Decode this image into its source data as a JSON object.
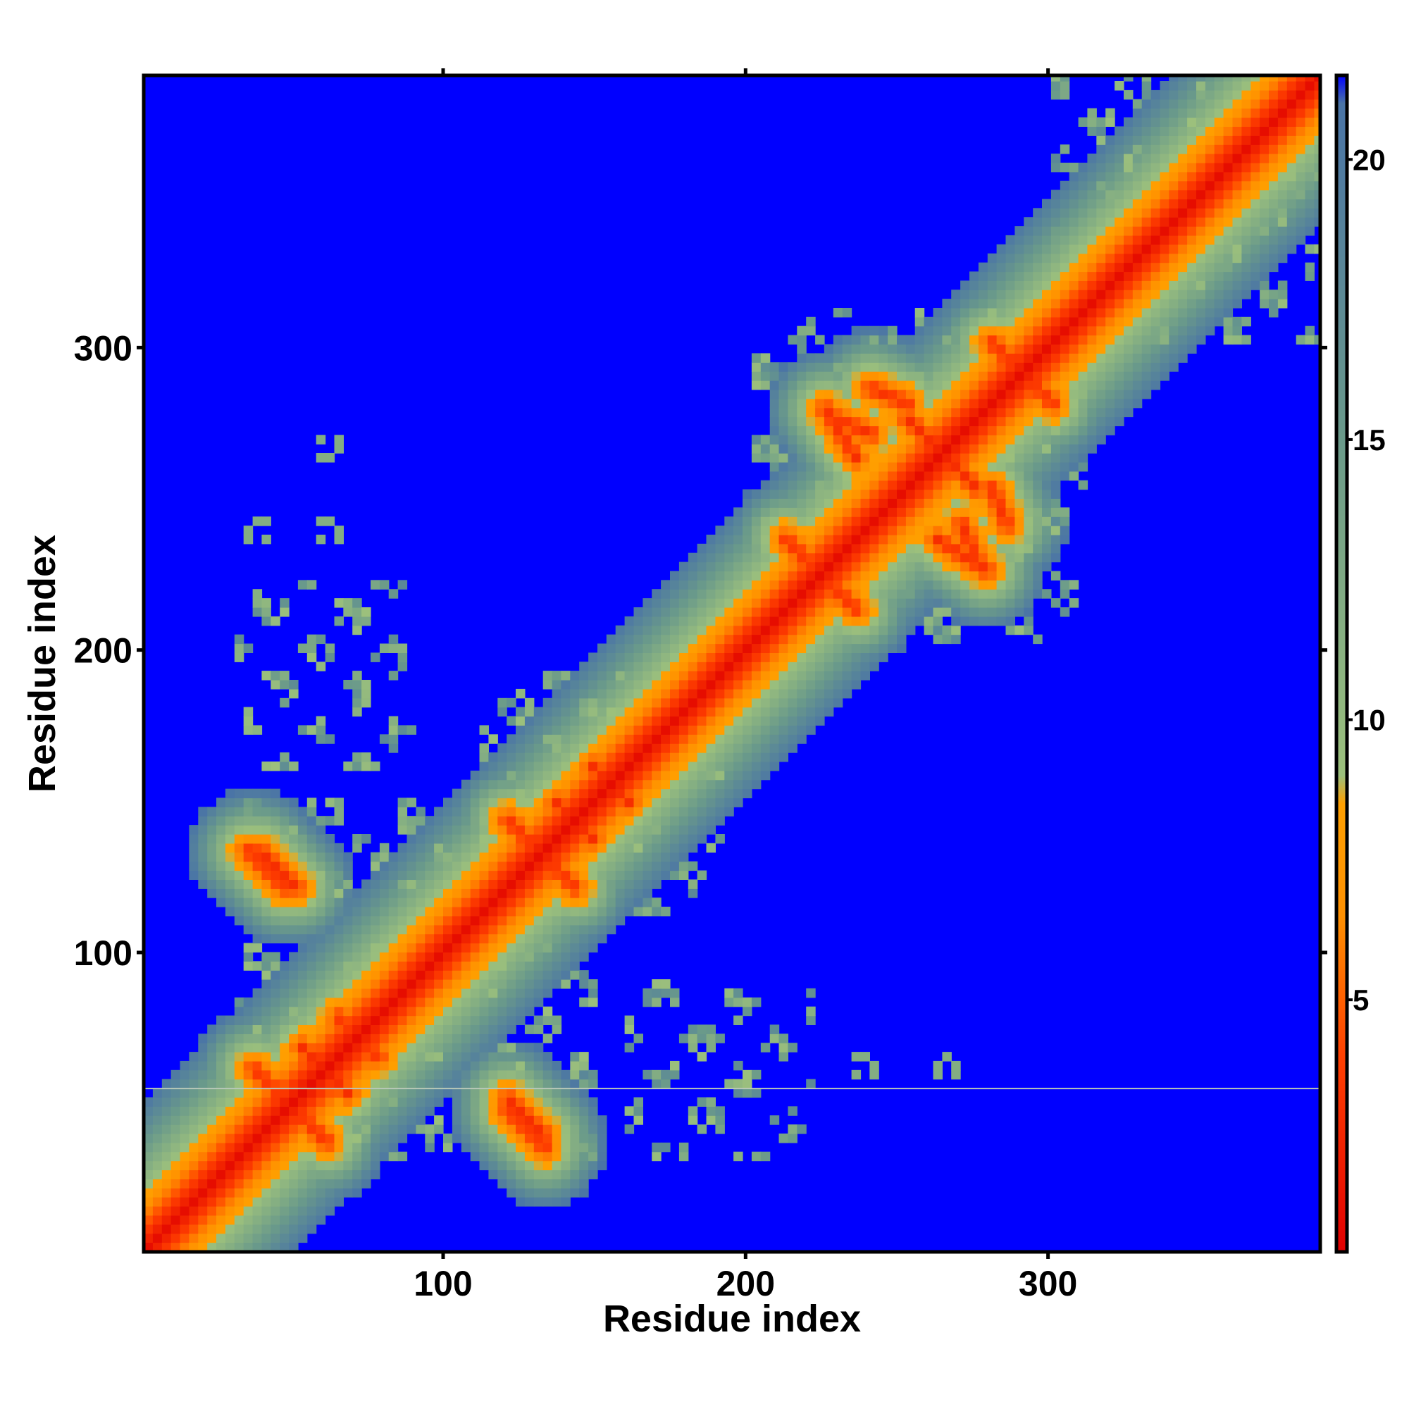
{
  "chart_data": {
    "type": "heatmap",
    "title": "",
    "xlabel": "Residue index",
    "ylabel": "Residue index",
    "xlim": [
      1,
      390
    ],
    "ylim": [
      1,
      390
    ],
    "x_ticks": [
      100,
      200,
      300
    ],
    "y_ticks": [
      100,
      200,
      300
    ],
    "colorbar": {
      "ticks": [
        5,
        10,
        15,
        20
      ],
      "range": [
        0.5,
        21.5
      ],
      "stops": [
        {
          "value": 0.5,
          "color": "#e00000"
        },
        {
          "value": 4.0,
          "color": "#ff4000"
        },
        {
          "value": 6.5,
          "color": "#ff9000"
        },
        {
          "value": 8.5,
          "color": "#ffa000"
        },
        {
          "value": 9.0,
          "color": "#9cc07c"
        },
        {
          "value": 15.0,
          "color": "#6a9a8a"
        },
        {
          "value": 21.0,
          "color": "#4a74a6"
        },
        {
          "value": 21.5,
          "color": "#0000ff"
        }
      ]
    },
    "background_color": "#0000ff",
    "diagonal_band": {
      "from": 1,
      "to": 390
    },
    "horizontal_line_y": 55,
    "contact_lines": [
      {
        "x1": 34,
        "y1": 132,
        "x2": 46,
        "y2": 120
      },
      {
        "x1": 36,
        "y1": 60,
        "x2": 60,
        "y2": 36
      },
      {
        "x1": 52,
        "y1": 67,
        "x2": 67,
        "y2": 52
      },
      {
        "x1": 64,
        "y1": 77,
        "x2": 77,
        "y2": 64
      },
      {
        "x1": 120,
        "y1": 50,
        "x2": 132,
        "y2": 38
      },
      {
        "x1": 120,
        "y1": 142,
        "x2": 142,
        "y2": 120
      },
      {
        "x1": 136,
        "y1": 148,
        "x2": 148,
        "y2": 136
      },
      {
        "x1": 148,
        "y1": 160,
        "x2": 160,
        "y2": 148
      },
      {
        "x1": 212,
        "y1": 235,
        "x2": 235,
        "y2": 212
      },
      {
        "x1": 228,
        "y1": 275,
        "x2": 240,
        "y2": 270
      },
      {
        "x1": 240,
        "y1": 285,
        "x2": 252,
        "y2": 280
      },
      {
        "x1": 252,
        "y1": 275,
        "x2": 275,
        "y2": 252
      },
      {
        "x1": 262,
        "y1": 235,
        "x2": 278,
        "y2": 225
      },
      {
        "x1": 280,
        "y1": 300,
        "x2": 300,
        "y2": 280
      }
    ],
    "contact_blocks": [
      {
        "x": [
          30,
          100
        ],
        "y": [
          30,
          100
        ]
      },
      {
        "x": [
          30,
          100
        ],
        "y": [
          110,
          150
        ]
      },
      {
        "x": [
          110,
          190
        ],
        "y": [
          110,
          190
        ]
      },
      {
        "x": [
          110,
          150
        ],
        "y": [
          30,
          60
        ]
      },
      {
        "x": [
          160,
          220
        ],
        "y": [
          30,
          90
        ]
      },
      {
        "x": [
          40,
          90
        ],
        "y": [
          160,
          210
        ]
      },
      {
        "x": [
          200,
          310
        ],
        "y": [
          200,
          310
        ]
      },
      {
        "x": [
          300,
          390
        ],
        "y": [
          300,
          390
        ]
      }
    ],
    "small_spots": [
      {
        "x": 60,
        "y": 266
      },
      {
        "x": 60,
        "y": 237
      },
      {
        "x": 38,
        "y": 237
      },
      {
        "x": 237,
        "y": 60
      },
      {
        "x": 265,
        "y": 60
      }
    ]
  }
}
